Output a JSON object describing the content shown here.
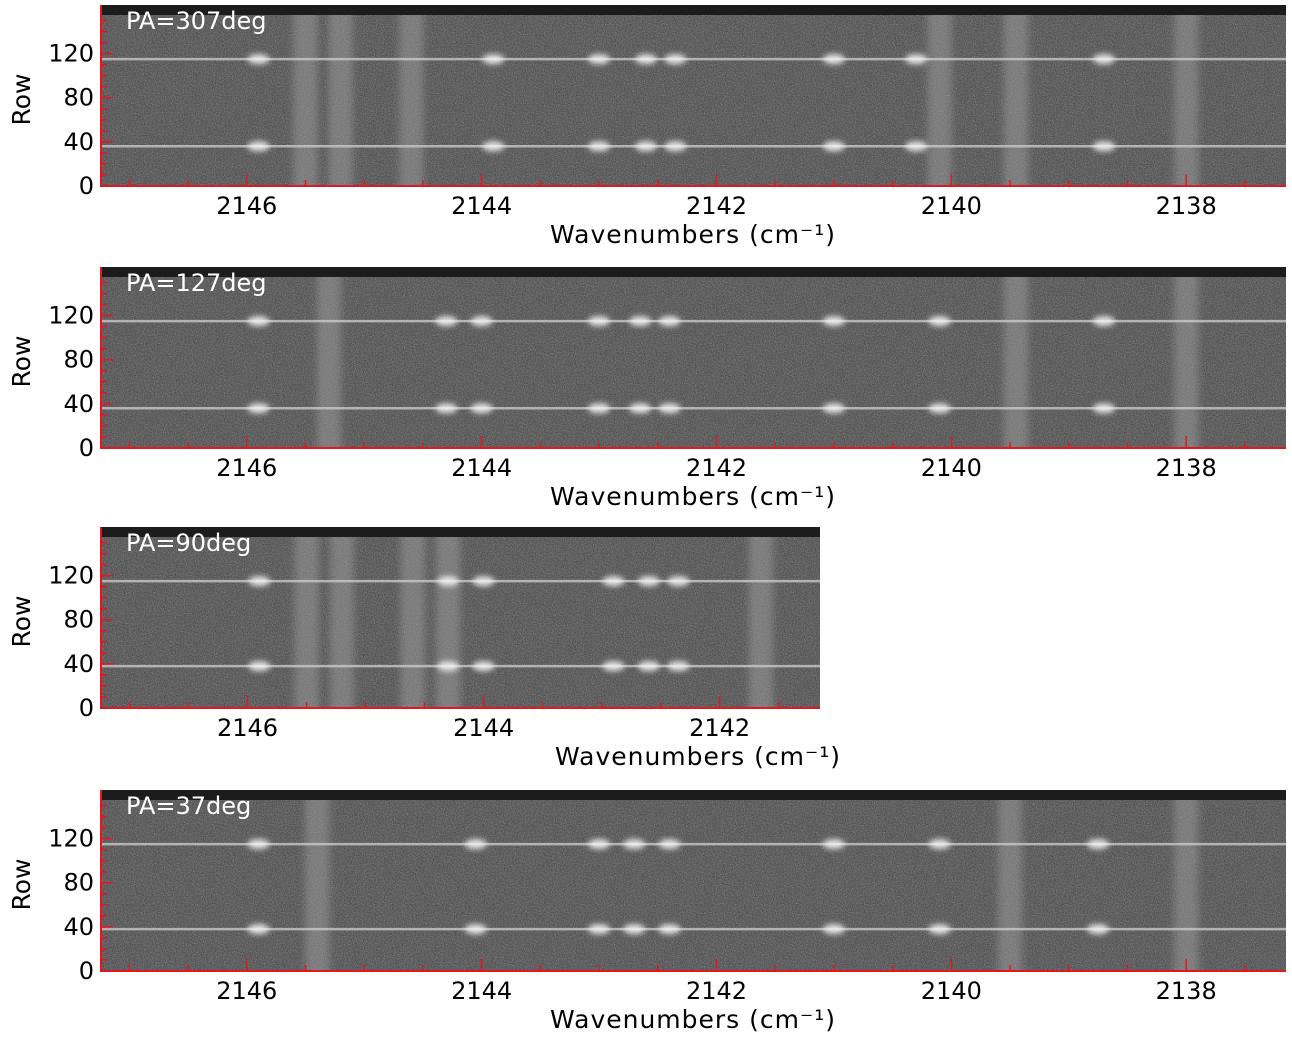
{
  "chart_data": [
    {
      "type": "heatmap",
      "label": "PA=307deg",
      "xlabel": "Wavenumbers (cm⁻¹)",
      "ylabel": "Row",
      "xlim": [
        2147.25,
        2137.15
      ],
      "ylim": [
        0,
        155
      ],
      "xticks": [
        2146,
        2144,
        2142,
        2140,
        2138
      ],
      "yticks": [
        0,
        40,
        80,
        120
      ],
      "trace_rows": [
        36,
        115
      ],
      "emission_lines": [
        2145.9,
        2143.9,
        2143.0,
        2142.6,
        2142.35,
        2141.0,
        2140.3,
        2138.7
      ],
      "telluric_bands": [
        2145.5,
        2145.2,
        2144.6,
        2140.1,
        2139.45,
        2138.0
      ]
    },
    {
      "type": "heatmap",
      "label": "PA=127deg",
      "xlabel": "Wavenumbers (cm⁻¹)",
      "ylabel": "Row",
      "xlim": [
        2147.25,
        2137.15
      ],
      "ylim": [
        0,
        155
      ],
      "xticks": [
        2146,
        2144,
        2142,
        2140,
        2138
      ],
      "yticks": [
        0,
        40,
        80,
        120
      ],
      "trace_rows": [
        36,
        115
      ],
      "emission_lines": [
        2145.9,
        2144.3,
        2144.0,
        2143.0,
        2142.65,
        2142.4,
        2141.0,
        2140.1,
        2138.7
      ],
      "telluric_bands": [
        2145.3,
        2139.45,
        2138.0
      ]
    },
    {
      "type": "heatmap",
      "label": "PA=90deg",
      "xlabel": "Wavenumbers (cm⁻¹)",
      "ylabel": "Row",
      "xlim": [
        2147.25,
        2141.15
      ],
      "ylim": [
        0,
        155
      ],
      "xticks": [
        2146,
        2144,
        2142
      ],
      "yticks": [
        0,
        40,
        80,
        120
      ],
      "trace_rows": [
        38,
        115
      ],
      "emission_lines": [
        2145.9,
        2144.3,
        2144.0,
        2142.9,
        2142.6,
        2142.35
      ],
      "telluric_bands": [
        2145.5,
        2145.2,
        2144.6,
        2144.3,
        2141.65
      ]
    },
    {
      "type": "heatmap",
      "label": "PA=37deg",
      "xlabel": "Wavenumbers (cm⁻¹)",
      "ylabel": "Row",
      "xlim": [
        2147.25,
        2137.15
      ],
      "ylim": [
        0,
        155
      ],
      "xticks": [
        2146,
        2144,
        2142,
        2140,
        2138
      ],
      "yticks": [
        0,
        40,
        80,
        120
      ],
      "trace_rows": [
        38,
        115
      ],
      "emission_lines": [
        2145.9,
        2144.05,
        2143.0,
        2142.7,
        2142.4,
        2141.0,
        2140.1,
        2138.75
      ],
      "telluric_bands": [
        2145.4,
        2139.5,
        2138.0
      ]
    }
  ],
  "colors": {
    "background": "#ffffff",
    "image_base": "#3f3f3f",
    "header_strip": "#1c1c1c",
    "axis_line": "#e0191f",
    "tick_red": "#e0191f",
    "text": "#000000",
    "pa_label": "#ffffff",
    "trace": "#cfcfcf",
    "band": "#a5a5a5"
  }
}
